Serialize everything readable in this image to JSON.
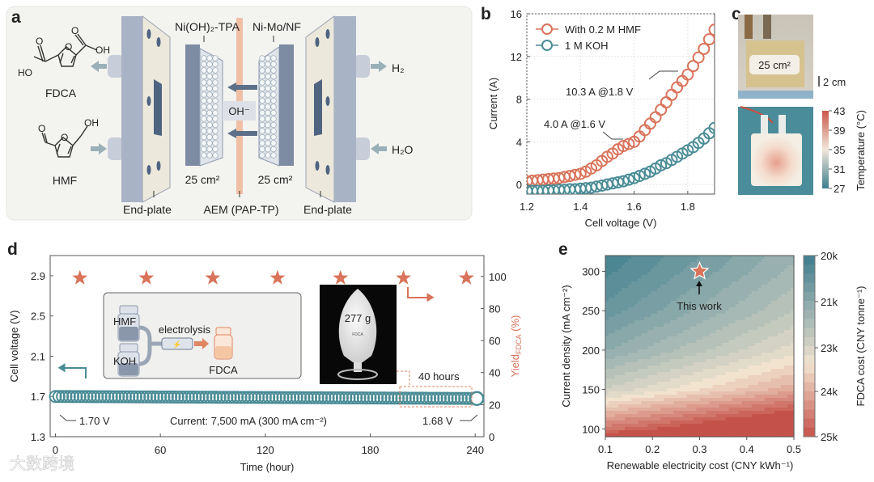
{
  "panel_labels": {
    "a": "a",
    "b": "b",
    "c": "c",
    "d": "d",
    "e": "e"
  },
  "panel_a": {
    "anode_label": "Ni(OH)₂-TPA",
    "cathode_label": "Ni-Mo/NF",
    "anode_area": "25 cm²",
    "cathode_area": "25 cm²",
    "left_plate": "End-plate",
    "right_plate": "End-plate",
    "membrane": "AEM (PAP-TP)",
    "ion": "OH⁻",
    "product": "FDCA",
    "reactant": "HMF",
    "gas_out": "H₂",
    "water_in": "H₂O",
    "fdca_atoms": {
      "o_ring": "O",
      "o1": "O",
      "oh1": "OH",
      "o2": "O",
      "ho2": "HO"
    },
    "hmf_atoms": {
      "o_ring": "O",
      "o_ald": "O",
      "oh": "OH"
    },
    "colors": {
      "plate": "#a9b3c6",
      "face": "#ece8dc",
      "membrane": "#f0c0a6",
      "hole": "#4f6480"
    }
  },
  "panel_c": {
    "photo_label": "25 cm²",
    "scale_bar": "2 cm",
    "colorbar_title": "Temperature (°C)",
    "colorbar_ticks": [
      "43",
      "39",
      "35",
      "31",
      "27"
    ]
  },
  "chart_data": [
    {
      "id": "b",
      "type": "scatter",
      "xlabel": "Cell voltage (V)",
      "ylabel": "Current (A)",
      "xlim": [
        1.2,
        1.9
      ],
      "ylim": [
        -0.9,
        16
      ],
      "xticks": [
        "1.2",
        "1.4",
        "1.6",
        "1.8"
      ],
      "xtick_values": [
        1.2,
        1.4,
        1.6,
        1.8
      ],
      "yticks": [
        "0",
        "4",
        "8",
        "12",
        "16"
      ],
      "ytick_values": [
        0,
        4,
        8,
        12,
        16
      ],
      "legend": "top-left",
      "x": [
        1.2,
        1.22,
        1.24,
        1.26,
        1.28,
        1.3,
        1.32,
        1.34,
        1.36,
        1.38,
        1.4,
        1.42,
        1.44,
        1.46,
        1.48,
        1.5,
        1.52,
        1.54,
        1.56,
        1.58,
        1.6,
        1.62,
        1.64,
        1.66,
        1.68,
        1.7,
        1.72,
        1.74,
        1.76,
        1.78,
        1.8,
        1.82,
        1.84,
        1.86,
        1.88,
        1.9
      ],
      "series": [
        {
          "name": "With 0.2 M HMF",
          "color": "#d9735a",
          "values": [
            0.3,
            0.35,
            0.4,
            0.45,
            0.5,
            0.55,
            0.6,
            0.7,
            0.8,
            0.9,
            1.0,
            1.2,
            1.5,
            1.8,
            2.2,
            2.6,
            2.9,
            3.3,
            3.6,
            3.8,
            4.0,
            4.5,
            5.1,
            5.7,
            6.3,
            7.0,
            7.7,
            8.4,
            9.1,
            9.7,
            10.3,
            11.1,
            11.9,
            12.7,
            13.6,
            14.5
          ]
        },
        {
          "name": "1 M KOH",
          "color": "#4a8c96",
          "values": [
            -0.6,
            -0.6,
            -0.6,
            -0.6,
            -0.55,
            -0.55,
            -0.5,
            -0.5,
            -0.45,
            -0.45,
            -0.4,
            -0.35,
            -0.3,
            -0.2,
            -0.1,
            0,
            0.1,
            0.2,
            0.3,
            0.45,
            0.6,
            0.8,
            1.0,
            1.2,
            1.5,
            1.8,
            2.0,
            2.3,
            2.6,
            2.9,
            3.2,
            3.5,
            3.9,
            4.3,
            4.8,
            5.3
          ]
        }
      ],
      "annotations": [
        "10.3 A @1.8 V",
        "4.0 A @1.6 V"
      ]
    },
    {
      "id": "d",
      "type": "scatter",
      "xlabel": "Time (hour)",
      "ylabel": "Cell voltage (V)",
      "y2label_main": "Yield",
      "y2label_sub": "FDCA",
      "y2label_unit": " (%)",
      "xlim": [
        -3,
        245
      ],
      "ylim": [
        1.3,
        3.1
      ],
      "y2lim": [
        0,
        113
      ],
      "xticks": [
        "0",
        "60",
        "120",
        "180",
        "240"
      ],
      "xtick_values": [
        0,
        60,
        120,
        180,
        240
      ],
      "yticks": [
        "1.3",
        "1.7",
        "2.1",
        "2.5",
        "2.9"
      ],
      "ytick_values": [
        1.3,
        1.7,
        2.1,
        2.5,
        2.9
      ],
      "y2ticks": [
        "0",
        "20",
        "40",
        "60",
        "80",
        "100"
      ],
      "y2tick_values": [
        0,
        20,
        40,
        60,
        80,
        100
      ],
      "voltage_series": {
        "name": "Cell voltage",
        "color": "#4a8c96",
        "x_start": 0,
        "x_end": 240,
        "x_step": 2,
        "v_start": 1.7,
        "v_end": 1.68
      },
      "yield_series": {
        "name": "Yield FDCA",
        "color": "#d9735a",
        "x": [
          14,
          52,
          90,
          127,
          163,
          199,
          235
        ],
        "values": [
          99,
          99,
          99,
          99,
          99,
          99,
          99
        ]
      },
      "annotations": {
        "start": "1.70 V",
        "end": "1.68 V",
        "current": "Current: 7,500 mA  (300 mA cm⁻²)",
        "window": "40 hours"
      },
      "inset": {
        "hmf": "HMF",
        "koh": "KOH",
        "process": "electrolysis",
        "product": "FDCA",
        "photo_mass": "277 g",
        "photo_tag": "FDCA"
      }
    },
    {
      "id": "e",
      "type": "heatmap",
      "xlabel": "Renewable electricity cost (CNY kWh⁻¹)",
      "ylabel": "Current density (mA cm⁻²)",
      "colorbar_label": "FDCA cost (CNY tonne⁻¹)",
      "xlim": [
        0.1,
        0.5
      ],
      "ylim": [
        90,
        320
      ],
      "xticks": [
        "0.1",
        "0.2",
        "0.3",
        "0.4",
        "0.5"
      ],
      "xtick_values": [
        0.1,
        0.2,
        0.3,
        0.4,
        0.5
      ],
      "yticks": [
        "100",
        "150",
        "200",
        "250",
        "300"
      ],
      "ytick_values": [
        100,
        150,
        200,
        250,
        300
      ],
      "colorbar_ticks": [
        "20k",
        "21k",
        "23k",
        "24k",
        "25k"
      ],
      "grid_x": [
        0.1,
        0.2,
        0.3,
        0.4,
        0.5
      ],
      "grid_y": [
        90,
        100,
        150,
        200,
        250,
        300,
        320
      ],
      "z": [
        [
          25200,
          25550,
          25900,
          26250,
          26600
        ],
        [
          24500,
          24850,
          25200,
          25550,
          25900
        ],
        [
          22400,
          22750,
          23100,
          23450,
          23800
        ],
        [
          21350,
          21700,
          22050,
          22400,
          22750
        ],
        [
          20720,
          21070,
          21420,
          21770,
          22120
        ],
        [
          20300,
          20650,
          21000,
          21350,
          21700
        ],
        [
          20169,
          20519,
          20869,
          21219,
          21569
        ]
      ],
      "zlim": [
        20000,
        25000
      ],
      "marker": {
        "x": 0.3,
        "y": 300,
        "label": "This work"
      },
      "colors": {
        "low": "#3d7d8e",
        "mid": "#f2e3cf",
        "high": "#c5524a"
      }
    }
  ],
  "watermark": "大数跨境"
}
